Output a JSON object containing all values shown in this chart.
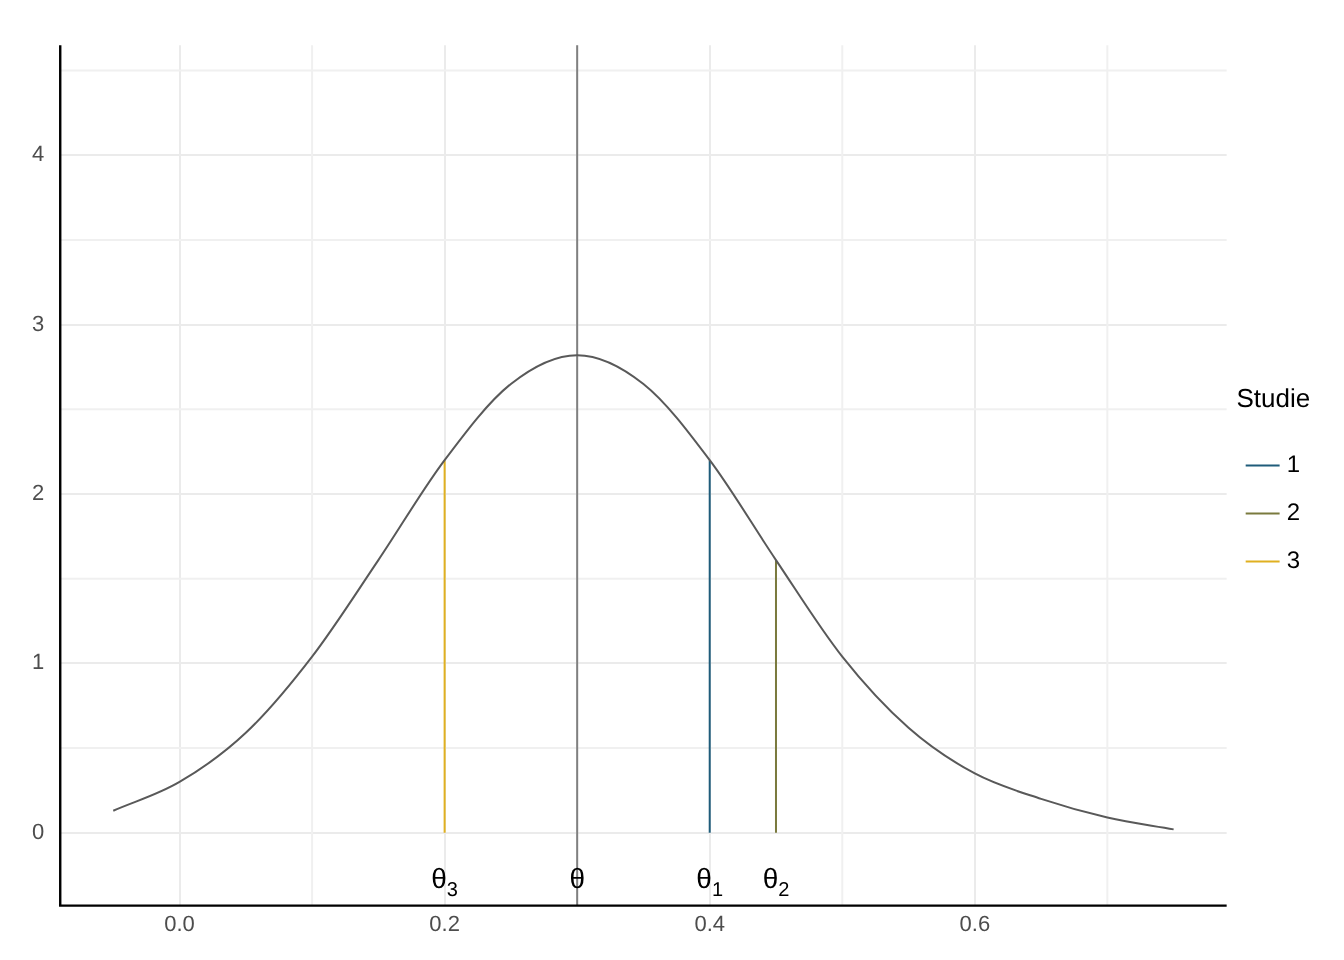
{
  "chart_data": {
    "type": "line",
    "legend_title": "Studie",
    "legend": "right",
    "grid": true,
    "marker": "none",
    "line_style": "solid",
    "xlim": [
      -0.09,
      0.79
    ],
    "xticks": [
      {
        "value": 0,
        "label": "0.0"
      },
      0.2,
      0.4,
      0.6
    ],
    "ylim": [
      -0.43,
      4.65
    ],
    "yticks": [
      0,
      1,
      2,
      3,
      4
    ],
    "series": [
      {
        "color": "#595959",
        "x": [
          -0.05,
          0,
          0.05,
          0.1,
          0.15,
          0.2,
          0.25,
          0.3,
          0.35,
          0.4,
          0.45,
          0.5,
          0.55,
          0.6,
          0.65,
          0.7,
          0.75
        ],
        "values": [
          0.13,
          0.3,
          0.59,
          1.04,
          1.61,
          2.2,
          2.65,
          2.82,
          2.65,
          2.2,
          1.61,
          1.04,
          0.62,
          0.35,
          0.2,
          0.09,
          0.02
        ]
      },
      {
        "name": "1",
        "color": "#1f5c7a",
        "x": [
          0.4,
          0.4
        ],
        "values": [
          0,
          2.2
        ]
      },
      {
        "name": "2",
        "color": "#7a7a3e",
        "x": [
          0.45,
          0.45
        ],
        "values": [
          0,
          1.61
        ]
      },
      {
        "name": "3",
        "color": "#e0b020",
        "x": [
          0.2,
          0.2
        ],
        "values": [
          0,
          2.2
        ]
      }
    ],
    "ref_lines": [
      {
        "axis": "x",
        "value": 0.3,
        "color": "#808080"
      }
    ],
    "annotations": [
      {
        "text": "θ$_{3}$",
        "x": 0.2,
        "y": 0
      },
      {
        "text": "θ",
        "x": 0.3,
        "y": 0
      },
      {
        "text": "θ$_{1}$",
        "x": 0.4,
        "y": 0
      },
      {
        "text": "θ$_{2}$",
        "x": 0.45,
        "y": 0
      }
    ]
  }
}
